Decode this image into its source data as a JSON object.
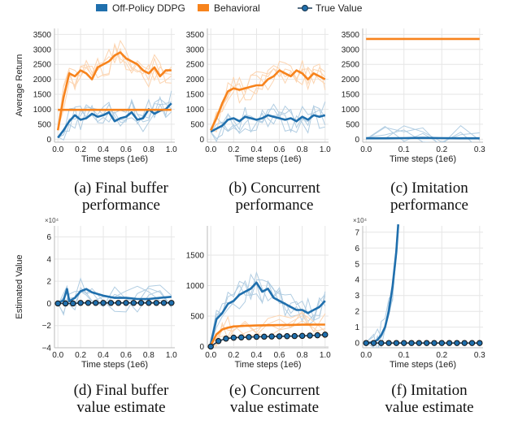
{
  "legend": {
    "items": [
      {
        "label": "Off-Policy DDPG",
        "color": "#1f6fad",
        "marker": "rect"
      },
      {
        "label": "Behavioral",
        "color": "#f7831c",
        "marker": "rect"
      },
      {
        "label": "True Value",
        "color": "#1e3f5a",
        "marker": "line-dot"
      }
    ]
  },
  "chart_data": [
    {
      "id": "a",
      "type": "line",
      "caption_line1": "(a) Final buffer",
      "caption_line2": "performance",
      "xlabel": "Time steps (1e6)",
      "ylabel": "Average Return",
      "xlim": [
        -0.03,
        1.03
      ],
      "ylim": [
        -100,
        3700
      ],
      "xticks": [
        0.0,
        0.2,
        0.4,
        0.6,
        0.8,
        1.0
      ],
      "xtick_labels": [
        "0.0",
        "0.2",
        "0.4",
        "0.6",
        "0.8",
        "1.0"
      ],
      "yticks": [
        0,
        500,
        1000,
        1500,
        2000,
        2500,
        3000,
        3500
      ],
      "ytick_labels": [
        "0",
        "500",
        "1000",
        "1500",
        "2000",
        "2500",
        "3000",
        "3500"
      ],
      "series": [
        {
          "name": "Off-Policy DDPG",
          "color": "#1f6fad",
          "x": [
            0.0,
            0.05,
            0.1,
            0.15,
            0.2,
            0.25,
            0.3,
            0.35,
            0.4,
            0.45,
            0.5,
            0.55,
            0.6,
            0.65,
            0.7,
            0.75,
            0.8,
            0.85,
            0.9,
            0.95,
            1.0
          ],
          "y": [
            50,
            300,
            600,
            800,
            650,
            700,
            850,
            750,
            800,
            900,
            600,
            700,
            750,
            900,
            650,
            700,
            1000,
            850,
            950,
            1000,
            1200
          ]
        },
        {
          "name": "Behavioral",
          "color": "#f7831c",
          "x": [
            0.0,
            0.05,
            0.1,
            0.15,
            0.2,
            0.25,
            0.3,
            0.35,
            0.4,
            0.45,
            0.5,
            0.55,
            0.6,
            0.65,
            0.7,
            0.75,
            0.8,
            0.85,
            0.9,
            0.95,
            1.0
          ],
          "y": [
            300,
            1400,
            2200,
            2100,
            2300,
            2200,
            2000,
            2400,
            2500,
            2600,
            2800,
            2900,
            2700,
            2600,
            2500,
            2300,
            2200,
            2400,
            2100,
            2300,
            2300
          ]
        },
        {
          "name": "Final buffer behavioral",
          "color": "#f7831c",
          "x": [
            0.0,
            1.0
          ],
          "y": [
            980,
            980
          ]
        }
      ]
    },
    {
      "id": "b",
      "type": "line",
      "caption_line1": "(b) Concurrent",
      "caption_line2": "performance",
      "xlabel": "Time steps (1e6)",
      "ylabel": "",
      "xlim": [
        -0.03,
        1.03
      ],
      "ylim": [
        -100,
        3700
      ],
      "xticks": [
        0.0,
        0.2,
        0.4,
        0.6,
        0.8,
        1.0
      ],
      "xtick_labels": [
        "0.0",
        "0.2",
        "0.4",
        "0.6",
        "0.8",
        "1.0"
      ],
      "yticks": [
        0,
        500,
        1000,
        1500,
        2000,
        2500,
        3000,
        3500
      ],
      "ytick_labels": [
        "0",
        "500",
        "1000",
        "1500",
        "2000",
        "2500",
        "3000",
        "3500"
      ],
      "series": [
        {
          "name": "Off-Policy DDPG",
          "color": "#1f6fad",
          "x": [
            0.0,
            0.05,
            0.1,
            0.15,
            0.2,
            0.25,
            0.3,
            0.35,
            0.4,
            0.45,
            0.5,
            0.55,
            0.6,
            0.65,
            0.7,
            0.75,
            0.8,
            0.85,
            0.9,
            0.95,
            1.0
          ],
          "y": [
            250,
            350,
            450,
            650,
            700,
            600,
            750,
            700,
            650,
            700,
            800,
            750,
            700,
            650,
            700,
            600,
            750,
            650,
            800,
            750,
            800
          ]
        },
        {
          "name": "Behavioral",
          "color": "#f7831c",
          "x": [
            0.0,
            0.05,
            0.1,
            0.15,
            0.2,
            0.25,
            0.3,
            0.35,
            0.4,
            0.45,
            0.5,
            0.55,
            0.6,
            0.65,
            0.7,
            0.75,
            0.8,
            0.85,
            0.9,
            0.95,
            1.0
          ],
          "y": [
            300,
            700,
            1200,
            1600,
            1700,
            1650,
            1700,
            1750,
            1800,
            1800,
            2000,
            2100,
            2300,
            2200,
            2100,
            2300,
            2200,
            2000,
            2200,
            2100,
            2000
          ]
        }
      ]
    },
    {
      "id": "c",
      "type": "line",
      "caption_line1": "(c) Imitation",
      "caption_line2": "performance",
      "xlabel": "Time steps (1e6)",
      "ylabel": "",
      "xlim": [
        -0.009,
        0.309
      ],
      "ylim": [
        -100,
        3700
      ],
      "xticks": [
        0.0,
        0.1,
        0.2,
        0.3
      ],
      "xtick_labels": [
        "0.0",
        "0.1",
        "0.2",
        "0.3"
      ],
      "yticks": [
        0,
        500,
        1000,
        1500,
        2000,
        2500,
        3000,
        3500
      ],
      "ytick_labels": [
        "0",
        "500",
        "1000",
        "1500",
        "2000",
        "2500",
        "3000",
        "3500"
      ],
      "series": [
        {
          "name": "Off-Policy DDPG",
          "color": "#1f6fad",
          "x": [
            0.0,
            0.05,
            0.1,
            0.15,
            0.2,
            0.25,
            0.3
          ],
          "y": [
            30,
            30,
            35,
            45,
            35,
            30,
            30
          ]
        },
        {
          "name": "Behavioral",
          "color": "#f7831c",
          "x": [
            0.0,
            0.3
          ],
          "y": [
            3350,
            3350
          ]
        }
      ]
    },
    {
      "id": "d",
      "type": "line",
      "caption_line1": "(d) Final buffer",
      "caption_line2": "value estimate",
      "xlabel": "Time steps (1e6)",
      "ylabel": "Estimated Value",
      "exponent_label": "×10⁴",
      "xlim": [
        -0.03,
        1.03
      ],
      "ylim": [
        -4,
        7
      ],
      "xticks": [
        0.0,
        0.2,
        0.4,
        0.6,
        0.8,
        1.0
      ],
      "xtick_labels": [
        "0.0",
        "0.2",
        "0.4",
        "0.6",
        "0.8",
        "1.0"
      ],
      "yticks": [
        -4,
        -2,
        0,
        2,
        4,
        6
      ],
      "ytick_labels": [
        "−4",
        "−2",
        "0",
        "2",
        "4",
        "6"
      ],
      "series": [
        {
          "name": "Off-Policy DDPG",
          "color": "#1f6fad",
          "x": [
            0.0,
            0.05,
            0.08,
            0.1,
            0.15,
            0.2,
            0.25,
            0.3,
            0.4,
            0.5,
            0.6,
            0.7,
            0.8,
            0.9,
            1.0
          ],
          "y": [
            0,
            0.3,
            1.3,
            0.2,
            0.5,
            1.1,
            1.3,
            1.0,
            0.7,
            0.5,
            0.5,
            0.4,
            0.4,
            0.5,
            0.6
          ]
        },
        {
          "name": "True Value",
          "color": "#1e3f5a",
          "markers": true,
          "x": [
            0.0,
            0.067,
            0.133,
            0.2,
            0.267,
            0.333,
            0.4,
            0.467,
            0.533,
            0.6,
            0.667,
            0.733,
            0.8,
            0.867,
            0.933,
            1.0
          ],
          "y": [
            0,
            0,
            0,
            0.05,
            0.05,
            0.05,
            0.05,
            0.05,
            0.05,
            0.05,
            0.05,
            0.05,
            0.05,
            0.05,
            0.05,
            0.05
          ]
        }
      ]
    },
    {
      "id": "e",
      "type": "line",
      "caption_line1": "(e) Concurrent",
      "caption_line2": "value estimate",
      "xlabel": "Time steps (1e6)",
      "ylabel": "",
      "xlim": [
        -0.03,
        1.03
      ],
      "ylim": [
        -20,
        1980
      ],
      "xticks": [
        0.0,
        0.2,
        0.4,
        0.6,
        0.8,
        1.0
      ],
      "xtick_labels": [
        "0.0",
        "0.2",
        "0.4",
        "0.6",
        "0.8",
        "1.0"
      ],
      "yticks": [
        0,
        500,
        1000,
        1500
      ],
      "ytick_labels": [
        "0",
        "500",
        "1000",
        "1500"
      ],
      "series": [
        {
          "name": "Off-Policy DDPG",
          "color": "#1f6fad",
          "x": [
            0.0,
            0.05,
            0.1,
            0.15,
            0.2,
            0.25,
            0.3,
            0.35,
            0.4,
            0.45,
            0.5,
            0.55,
            0.6,
            0.65,
            0.7,
            0.75,
            0.8,
            0.85,
            0.9,
            0.95,
            1.0
          ],
          "y": [
            50,
            450,
            550,
            700,
            750,
            850,
            900,
            950,
            1050,
            900,
            950,
            800,
            750,
            700,
            650,
            600,
            600,
            550,
            600,
            650,
            750
          ]
        },
        {
          "name": "Behavioral",
          "color": "#f7831c",
          "x": [
            0.0,
            0.05,
            0.1,
            0.15,
            0.2,
            0.3,
            0.4,
            0.5,
            0.6,
            0.7,
            0.8,
            0.9,
            1.0
          ],
          "y": [
            20,
            200,
            280,
            310,
            330,
            340,
            345,
            350,
            352,
            355,
            358,
            360,
            360
          ]
        },
        {
          "name": "True Value",
          "color": "#1e3f5a",
          "markers": true,
          "x": [
            0.0,
            0.067,
            0.133,
            0.2,
            0.267,
            0.333,
            0.4,
            0.467,
            0.533,
            0.6,
            0.667,
            0.733,
            0.8,
            0.867,
            0.933,
            1.0
          ],
          "y": [
            0,
            90,
            130,
            145,
            150,
            155,
            160,
            162,
            165,
            168,
            170,
            172,
            175,
            180,
            185,
            195
          ]
        }
      ]
    },
    {
      "id": "f",
      "type": "line",
      "caption_line1": "(f) Imitation",
      "caption_line2": "value estimate",
      "xlabel": "Time steps (1e6)",
      "ylabel": "",
      "exponent_label": "×10⁴",
      "xlim": [
        -0.009,
        0.309
      ],
      "ylim": [
        -0.3,
        7.4
      ],
      "xticks": [
        0.0,
        0.1,
        0.2,
        0.3
      ],
      "xtick_labels": [
        "0.0",
        "0.1",
        "0.2",
        "0.3"
      ],
      "yticks": [
        0,
        1,
        2,
        3,
        4,
        5,
        6,
        7
      ],
      "ytick_labels": [
        "0",
        "1",
        "2",
        "3",
        "4",
        "5",
        "6",
        "7"
      ],
      "series": [
        {
          "name": "Off-Policy DDPG",
          "color": "#1f6fad",
          "x": [
            0.0,
            0.02,
            0.03,
            0.04,
            0.05,
            0.06,
            0.07,
            0.08,
            0.085
          ],
          "y": [
            0,
            0.05,
            0.2,
            0.5,
            1.0,
            2.0,
            3.6,
            5.8,
            7.5
          ]
        },
        {
          "name": "True Value",
          "color": "#1e3f5a",
          "markers": true,
          "x": [
            0.0,
            0.02,
            0.04,
            0.06,
            0.08,
            0.1,
            0.12,
            0.14,
            0.16,
            0.18,
            0.2,
            0.22,
            0.24,
            0.26,
            0.28,
            0.3
          ],
          "y": [
            0,
            0,
            0,
            0,
            0,
            0,
            0,
            0,
            0,
            0,
            0,
            0,
            0,
            0,
            0,
            0
          ]
        }
      ]
    }
  ]
}
